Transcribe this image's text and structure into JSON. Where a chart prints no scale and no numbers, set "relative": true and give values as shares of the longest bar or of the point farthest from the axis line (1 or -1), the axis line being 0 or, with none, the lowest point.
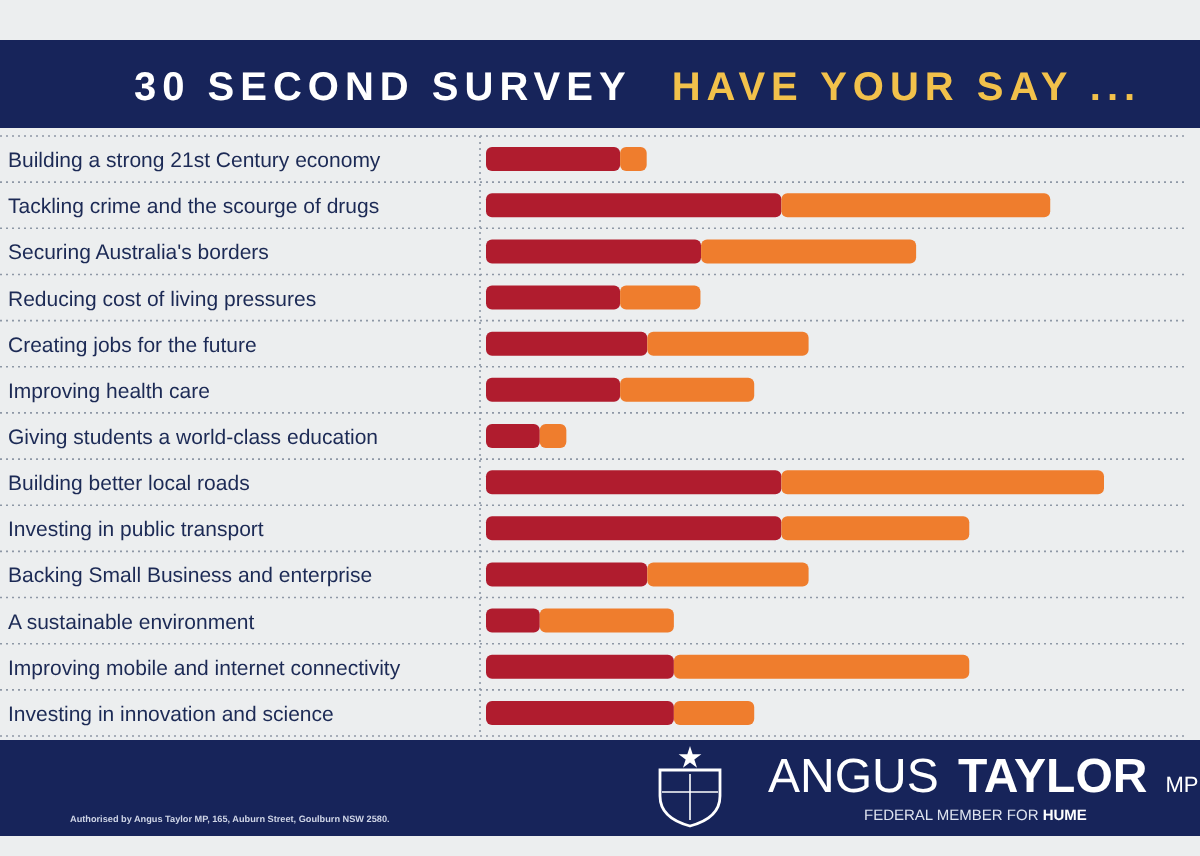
{
  "chart_data": {
    "type": "bar",
    "orientation": "horizontal",
    "stacked": true,
    "relative": true,
    "grid": "y",
    "title": "30 SECOND SURVEY",
    "subtitle": "HAVE YOUR SAY ...",
    "categories": [
      "Building a strong 21st Century economy",
      "Tackling crime and the scourge of drugs",
      "Securing Australia's borders",
      "Reducing cost of living pressures",
      "Creating jobs for the future",
      "Improving health care",
      "Giving students a world-class education",
      "Building better local roads",
      "Investing in public transport",
      "Backing Small Business and enterprise",
      "A sustainable environment",
      "Improving mobile and internet connectivity",
      "Investing in innovation and science"
    ],
    "series": [
      {
        "color": "#b01c2e",
        "values": [
          0.217,
          0.478,
          0.348,
          0.217,
          0.261,
          0.217,
          0.087,
          0.478,
          0.478,
          0.261,
          0.087,
          0.304,
          0.304
        ]
      },
      {
        "color": "#ef7d2d",
        "values": [
          0.043,
          0.435,
          0.348,
          0.13,
          0.261,
          0.217,
          0.043,
          0.522,
          0.304,
          0.261,
          0.217,
          0.478,
          0.13
        ]
      }
    ],
    "annotations": [
      "ANGUS TAYLOR MP",
      "FEDERAL MEMBER FOR HUME",
      "Authorised by Angus Taylor MP, 165, Auburn Street, Goulburn NSW 2580."
    ]
  }
}
